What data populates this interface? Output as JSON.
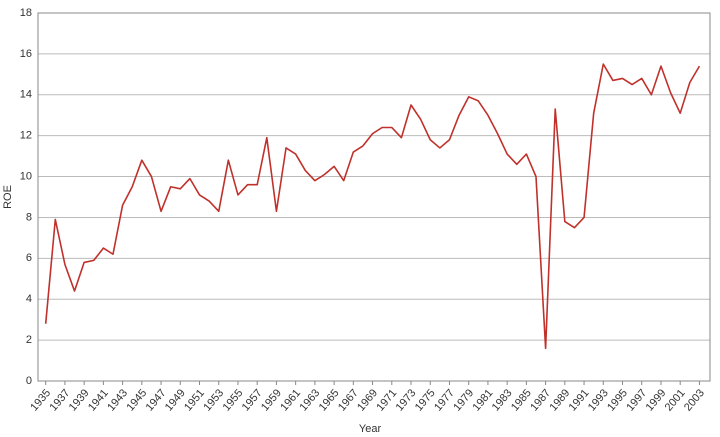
{
  "chart_data": {
    "type": "line",
    "x_label": "Year",
    "y_label": "ROE",
    "x": [
      1935,
      1936,
      1937,
      1938,
      1939,
      1940,
      1941,
      1942,
      1943,
      1944,
      1945,
      1946,
      1947,
      1948,
      1949,
      1950,
      1951,
      1952,
      1953,
      1954,
      1955,
      1956,
      1957,
      1958,
      1959,
      1960,
      1961,
      1962,
      1963,
      1964,
      1965,
      1966,
      1967,
      1968,
      1969,
      1970,
      1971,
      1972,
      1973,
      1974,
      1975,
      1976,
      1977,
      1978,
      1979,
      1980,
      1981,
      1982,
      1983,
      1984,
      1985,
      1986,
      1987,
      1988,
      1989,
      1990,
      1991,
      1992,
      1993,
      1994,
      1995,
      1996,
      1997,
      1998,
      1999,
      2000,
      2001,
      2002,
      2003
    ],
    "series": [
      {
        "color": "#c0312b",
        "values": [
          2.8,
          7.9,
          5.7,
          4.4,
          5.8,
          5.9,
          6.5,
          6.2,
          8.6,
          9.5,
          10.8,
          10.0,
          8.3,
          9.5,
          9.4,
          9.9,
          9.1,
          8.8,
          8.3,
          10.8,
          9.1,
          9.6,
          9.6,
          11.9,
          8.3,
          11.4,
          11.1,
          10.3,
          9.8,
          10.1,
          10.5,
          9.8,
          11.2,
          11.5,
          12.1,
          12.4,
          12.4,
          11.9,
          13.5,
          12.8,
          11.8,
          11.4,
          11.8,
          13.0,
          13.9,
          13.7,
          13.0,
          12.1,
          11.1,
          10.6,
          11.1,
          10.0,
          1.6,
          13.3,
          7.8,
          7.5,
          8.0,
          13.1,
          15.5,
          14.7,
          14.8,
          14.5,
          14.8,
          14.0,
          15.4,
          14.1,
          13.1,
          14.6,
          15.4
        ]
      }
    ],
    "xlim": [
      1934.2,
      2004.1
    ],
    "xticks": [
      1935,
      1937,
      1939,
      1941,
      1943,
      1945,
      1947,
      1949,
      1951,
      1953,
      1955,
      1957,
      1959,
      1961,
      1963,
      1965,
      1967,
      1969,
      1971,
      1973,
      1975,
      1977,
      1979,
      1981,
      1983,
      1985,
      1987,
      1989,
      1991,
      1993,
      1995,
      1997,
      1999,
      2001,
      2003
    ],
    "ylim": [
      0,
      18
    ],
    "yticks": [
      0,
      2,
      4,
      6,
      8,
      10,
      12,
      14,
      16,
      18
    ],
    "grid": true
  }
}
